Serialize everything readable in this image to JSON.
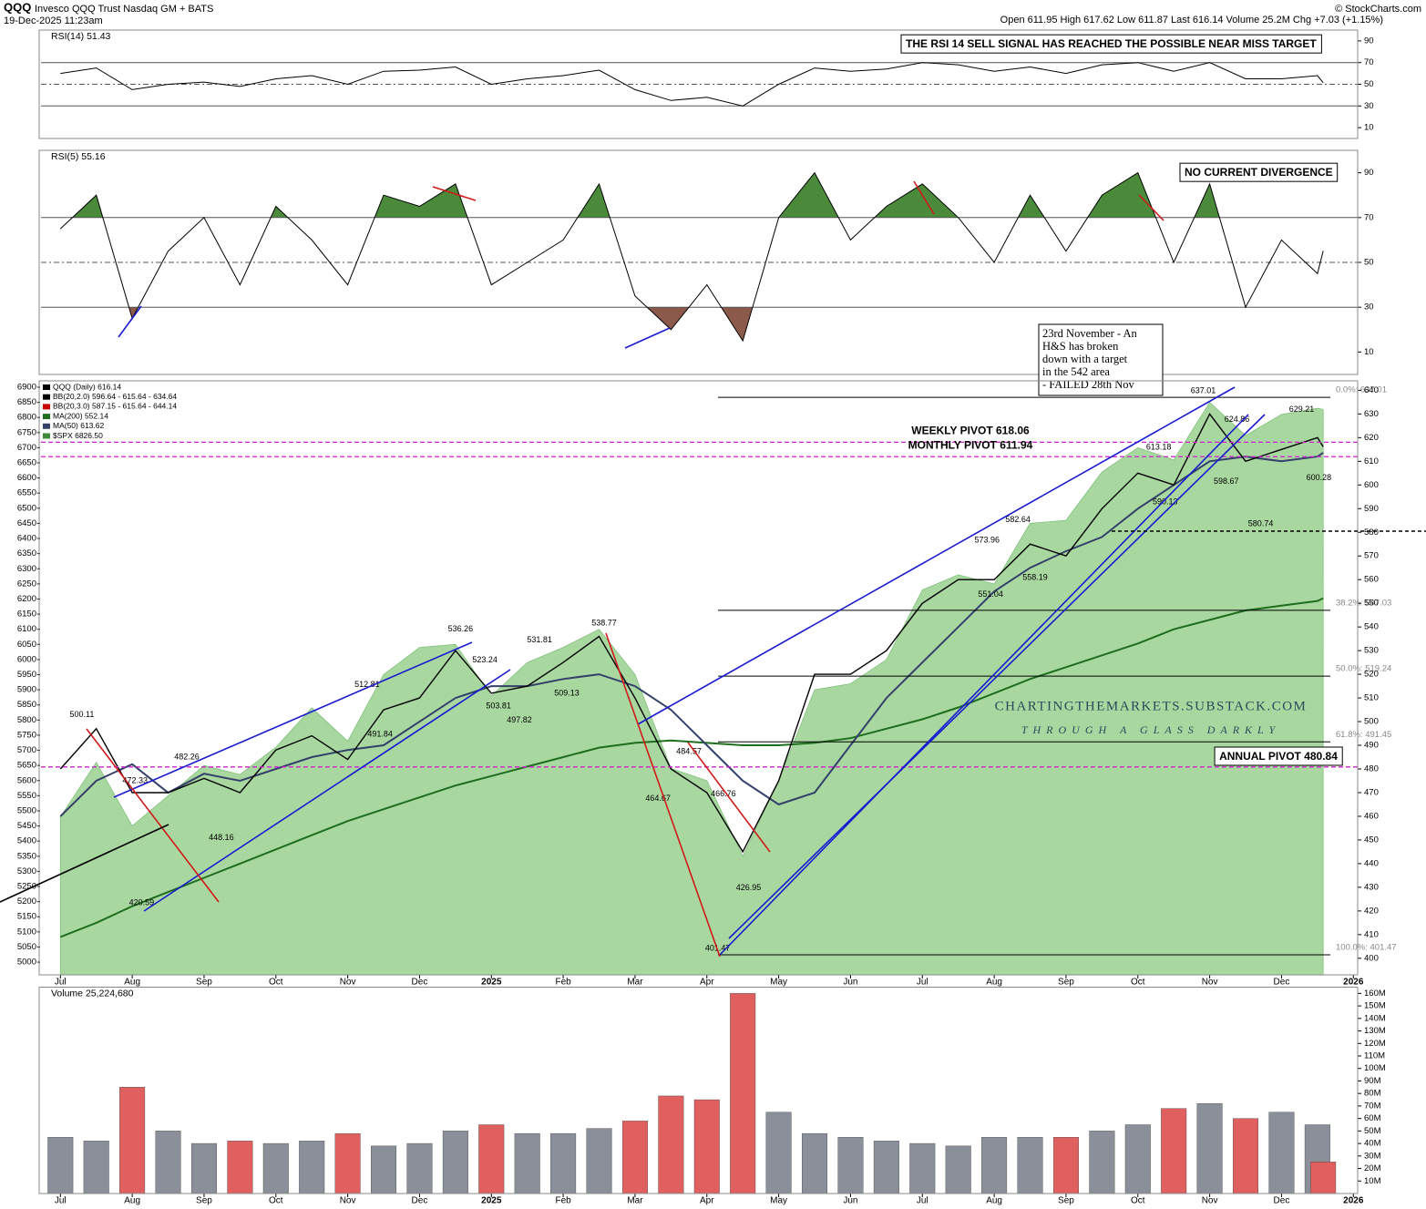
{
  "header": {
    "symbol": "QQQ",
    "name": "Invesco QQQ Trust Nasdaq GM + BATS",
    "date": "19-Dec-2025 11:23am",
    "quote": "Open 611.95 High 617.62 Low 611.87 Last 616.14 Volume 25.2M Chg +7.03 (+1.15%)",
    "credit": "© StockCharts.com"
  },
  "chart_data": [
    {
      "type": "line",
      "title": "RSI(14) 51.43",
      "annotation": "THE RSI 14 SELL SIGNAL HAS REACHED THE POSSIBLE NEAR MISS TARGET",
      "x": [
        0,
        0.5,
        1,
        1.5,
        2,
        2.5,
        3,
        3.5,
        4,
        4.5,
        5,
        5.5,
        6,
        6.5,
        7,
        7.5,
        8,
        8.5,
        9,
        9.5,
        10,
        10.5,
        11,
        11.5,
        12,
        12.5,
        13,
        13.5,
        14,
        14.5,
        15,
        15.5,
        16,
        16.5,
        17,
        17.5,
        17.58
      ],
      "xlim": [
        -0.27,
        18.06
      ],
      "ylim": [
        0,
        100
      ],
      "yticks": [
        90,
        70,
        50,
        30,
        10
      ],
      "levels": [
        70,
        50,
        30
      ],
      "series": [
        {
          "color": "#000000",
          "values": [
            60,
            65,
            45,
            50,
            52,
            48,
            55,
            58,
            50,
            62,
            63,
            66,
            50,
            55,
            58,
            63,
            45,
            35,
            38,
            30,
            50,
            65,
            62,
            64,
            70,
            68,
            62,
            66,
            60,
            68,
            70,
            62,
            70,
            55,
            55,
            58,
            51.43
          ]
        }
      ],
      "fill_colors": [
        "#4a8a3a",
        "#8b5a4a"
      ]
    },
    {
      "type": "line",
      "title": "RSI(5) 55.16",
      "annotation": "NO CURRENT DIVERGENCE",
      "x": [
        0,
        0.5,
        1,
        1.5,
        2,
        2.5,
        3,
        3.5,
        4,
        4.5,
        5,
        5.5,
        6,
        6.5,
        7,
        7.5,
        8,
        8.5,
        9,
        9.5,
        10,
        10.5,
        11,
        11.5,
        12,
        12.5,
        13,
        13.5,
        14,
        14.5,
        15,
        15.5,
        16,
        16.5,
        17,
        17.5,
        17.58
      ],
      "xlim": [
        -0.27,
        18.06
      ],
      "ylim": [
        0,
        100
      ],
      "yticks": [
        90,
        70,
        50,
        30,
        10
      ],
      "levels": [
        70,
        50,
        30
      ],
      "series": [
        {
          "color": "#000000",
          "values": [
            65,
            80,
            25,
            55,
            70,
            40,
            75,
            60,
            40,
            80,
            75,
            85,
            40,
            50,
            60,
            85,
            35,
            20,
            40,
            15,
            70,
            90,
            60,
            75,
            85,
            70,
            50,
            80,
            55,
            80,
            90,
            50,
            85,
            30,
            60,
            45,
            55.16
          ]
        }
      ],
      "fill_colors": [
        "#4a8a3a",
        "#8b5a4a"
      ]
    },
    {
      "type": "price",
      "x": [
        0,
        0.5,
        1,
        1.5,
        2,
        2.5,
        3,
        3.5,
        4,
        4.5,
        5,
        5.5,
        6,
        6.5,
        7,
        7.5,
        8,
        8.5,
        9,
        9.5,
        10,
        10.5,
        11,
        11.5,
        12,
        12.5,
        13,
        13.5,
        14,
        14.5,
        15,
        15.5,
        16,
        16.5,
        17,
        17.5,
        17.58
      ],
      "xlim": [
        -0.27,
        18.06
      ],
      "xticks": [
        {
          "value": 0,
          "label": "Jul"
        },
        {
          "value": 1,
          "label": "Aug"
        },
        {
          "value": 2,
          "label": "Sep"
        },
        {
          "value": 3,
          "label": "Oct"
        },
        {
          "value": 4,
          "label": "Nov"
        },
        {
          "value": 5,
          "label": "Dec"
        },
        {
          "value": 6,
          "label": "2025"
        },
        {
          "value": 7,
          "label": "Feb"
        },
        {
          "value": 8,
          "label": "Mar"
        },
        {
          "value": 9,
          "label": "Apr"
        },
        {
          "value": 10,
          "label": "May"
        },
        {
          "value": 11,
          "label": "Jun"
        },
        {
          "value": 12,
          "label": "Jul"
        },
        {
          "value": 13,
          "label": "Aug"
        },
        {
          "value": 14,
          "label": "Sep"
        },
        {
          "value": 15,
          "label": "Oct"
        },
        {
          "value": 16,
          "label": "Nov"
        },
        {
          "value": 17,
          "label": "Dec"
        },
        {
          "value": 18,
          "label": "2026"
        }
      ],
      "ylim": [
        393,
        644
      ],
      "yticks": [
        400,
        410,
        420,
        430,
        440,
        450,
        460,
        470,
        480,
        490,
        500,
        510,
        520,
        530,
        540,
        550,
        560,
        570,
        580,
        590,
        600,
        610,
        620,
        630,
        640
      ],
      "y2lim": [
        4958,
        6921
      ],
      "y2ticks": [
        5000,
        5050,
        5100,
        5150,
        5200,
        5250,
        5300,
        5350,
        5400,
        5450,
        5500,
        5550,
        5600,
        5650,
        5700,
        5750,
        5800,
        5850,
        5900,
        5950,
        6000,
        6050,
        6100,
        6150,
        6200,
        6250,
        6300,
        6350,
        6400,
        6450,
        6500,
        6550,
        6600,
        6650,
        6700,
        6750,
        6800,
        6850,
        6900
      ],
      "series": [
        {
          "name": "$SPX 6826.50",
          "color": "#a8d8a0",
          "axis": "y2",
          "values": [
            5480,
            5660,
            5450,
            5550,
            5650,
            5620,
            5710,
            5840,
            5730,
            5950,
            6040,
            6050,
            5880,
            5990,
            6040,
            6100,
            5950,
            5640,
            5600,
            5350,
            5600,
            5900,
            5920,
            6000,
            6230,
            6280,
            6250,
            6450,
            6460,
            6620,
            6700,
            6660,
            6850,
            6740,
            6810,
            6830,
            6826.5
          ]
        },
        {
          "name": "MA(200) 552.14",
          "color": "#1e6e1e",
          "values": [
            409,
            415,
            422,
            428,
            434,
            440,
            446,
            452,
            458,
            463,
            468,
            473,
            477,
            481,
            485,
            489,
            491,
            492,
            491,
            490,
            490,
            491,
            493,
            497,
            501,
            506,
            512,
            518,
            523,
            528,
            533,
            539,
            543,
            547,
            549,
            551,
            552.14
          ]
        },
        {
          "name": "MA(50) 613.62",
          "color": "#34406a",
          "values": [
            460,
            475,
            482,
            470,
            478,
            475,
            480,
            485,
            488,
            490,
            500,
            510,
            515,
            515,
            518,
            520,
            515,
            505,
            490,
            475,
            465,
            470,
            490,
            510,
            525,
            540,
            555,
            565,
            572,
            578,
            590,
            600,
            610,
            612,
            610,
            612,
            613.62
          ]
        },
        {
          "name": "QQQ (Daily) 616.14",
          "color": "#000000",
          "values": [
            480,
            497,
            470,
            470,
            476,
            470,
            488,
            494,
            484,
            505,
            510,
            530,
            512,
            515,
            525,
            536,
            510,
            480,
            470,
            445,
            475,
            520,
            520,
            530,
            550,
            560,
            560,
            575,
            570,
            590,
            605,
            600,
            630,
            610,
            615,
            620,
            616.14
          ]
        }
      ],
      "bands": [
        {
          "name": "BB(20,2.0) 596.64 - 615.64 - 634.64",
          "color": "#000000"
        },
        {
          "name": "BB(20,3.0) 587.15 - 615.64 - 644.14",
          "color": "#cc0000"
        }
      ],
      "pivots": [
        {
          "label": "WEEKLY PIVOT 618.06",
          "value": 618.06
        },
        {
          "label": "MONTHLY PIVOT 611.94",
          "value": 611.94
        },
        {
          "label": "ANNUAL PIVOT 480.84",
          "value": 480.84
        }
      ],
      "fibs": [
        {
          "label": "0.0%: 637.01",
          "value": 637.01
        },
        {
          "label": "38.2%: 547.03",
          "value": 547.03
        },
        {
          "label": "50.0%: 519.24",
          "value": 519.24
        },
        {
          "label": "61.8%: 491.45",
          "value": 491.45
        },
        {
          "label": "100.0%: 401.47",
          "value": 401.47
        }
      ],
      "price_labels": [
        {
          "x": 0.3,
          "value": 500.11
        },
        {
          "x": 1.76,
          "value": 482.26
        },
        {
          "x": 1.04,
          "value": 472.33
        },
        {
          "x": 1.13,
          "value": 420.59
        },
        {
          "x": 2.24,
          "value": 448.16
        },
        {
          "x": 4.45,
          "value": 491.84
        },
        {
          "x": 4.27,
          "value": 512.81
        },
        {
          "x": 5.57,
          "value": 536.26
        },
        {
          "x": 5.91,
          "value": 523.24
        },
        {
          "x": 6.1,
          "value": 503.81
        },
        {
          "x": 6.39,
          "value": 497.82
        },
        {
          "x": 6.67,
          "value": 531.81
        },
        {
          "x": 7.05,
          "value": 509.13
        },
        {
          "x": 7.57,
          "value": 538.77
        },
        {
          "x": 8.75,
          "value": 484.57
        },
        {
          "x": 9.23,
          "value": 466.76
        },
        {
          "x": 8.32,
          "value": 464.67
        },
        {
          "x": 9.58,
          "value": 426.95
        },
        {
          "x": 9.15,
          "value": 401.47
        },
        {
          "x": 12.95,
          "value": 551.04
        },
        {
          "x": 13.57,
          "value": 558.19
        },
        {
          "x": 12.9,
          "value": 573.96
        },
        {
          "x": 13.33,
          "value": 582.64
        },
        {
          "x": 15.38,
          "value": 590.13
        },
        {
          "x": 15.29,
          "value": 613.18
        },
        {
          "x": 15.91,
          "value": 637.01
        },
        {
          "x": 16.38,
          "value": 624.86
        },
        {
          "x": 16.23,
          "value": 598.67
        },
        {
          "x": 17.28,
          "value": 629.21
        },
        {
          "x": 16.71,
          "value": 580.74
        },
        {
          "x": 17.52,
          "value": 600.28
        }
      ],
      "note": [
        "23rd November - An",
        "H&S has broken",
        "down with a target",
        "in the 542 area",
        "- FAILED 28th Nov"
      ],
      "watermark": [
        "CHARTINGTHEMARKETS.SUBSTACK.COM",
        "THROUGH A GLASS DARKLY"
      ]
    },
    {
      "type": "bar",
      "title": "Volume 25,224,680",
      "x": [
        0,
        0.5,
        1,
        1.5,
        2,
        2.5,
        3,
        3.5,
        4,
        4.5,
        5,
        5.5,
        6,
        6.5,
        7,
        7.5,
        8,
        8.5,
        9,
        9.5,
        10,
        10.5,
        11,
        11.5,
        12,
        12.5,
        13,
        13.5,
        14,
        14.5,
        15,
        15.5,
        16,
        16.5,
        17,
        17.5,
        17.58
      ],
      "xlim": [
        -0.27,
        18.06
      ],
      "xticks": [
        {
          "value": 0,
          "label": "Jul"
        },
        {
          "value": 1,
          "label": "Aug"
        },
        {
          "value": 2,
          "label": "Sep"
        },
        {
          "value": 3,
          "label": "Oct"
        },
        {
          "value": 4,
          "label": "Nov"
        },
        {
          "value": 5,
          "label": "Dec"
        },
        {
          "value": 6,
          "label": "2025"
        },
        {
          "value": 7,
          "label": "Feb"
        },
        {
          "value": 8,
          "label": "Mar"
        },
        {
          "value": 9,
          "label": "Apr"
        },
        {
          "value": 10,
          "label": "May"
        },
        {
          "value": 11,
          "label": "Jun"
        },
        {
          "value": 12,
          "label": "Jul"
        },
        {
          "value": 13,
          "label": "Aug"
        },
        {
          "value": 14,
          "label": "Sep"
        },
        {
          "value": 15,
          "label": "Oct"
        },
        {
          "value": 16,
          "label": "Nov"
        },
        {
          "value": 17,
          "label": "Dec"
        },
        {
          "value": 18,
          "label": "2026"
        }
      ],
      "ylim": [
        0,
        165
      ],
      "yticks": [
        {
          "value": 10,
          "label": "10M"
        },
        {
          "value": 20,
          "label": "20M"
        },
        {
          "value": 30,
          "label": "30M"
        },
        {
          "value": 40,
          "label": "40M"
        },
        {
          "value": 50,
          "label": "50M"
        },
        {
          "value": 60,
          "label": "60M"
        },
        {
          "value": 70,
          "label": "70M"
        },
        {
          "value": 80,
          "label": "80M"
        },
        {
          "value": 90,
          "label": "90M"
        },
        {
          "value": 100,
          "label": "100M"
        },
        {
          "value": 110,
          "label": "110M"
        },
        {
          "value": 120,
          "label": "120M"
        },
        {
          "value": 130,
          "label": "130M"
        },
        {
          "value": 140,
          "label": "140M"
        },
        {
          "value": 150,
          "label": "150M"
        },
        {
          "value": 160,
          "label": "160M"
        }
      ],
      "up_color": "#8a8f99",
      "down_color": "#e06060",
      "series": [
        {
          "values": [
            45,
            42,
            85,
            50,
            40,
            42,
            40,
            42,
            48,
            38,
            40,
            50,
            55,
            48,
            48,
            52,
            58,
            78,
            75,
            160,
            65,
            48,
            45,
            42,
            40,
            38,
            45,
            45,
            45,
            50,
            55,
            68,
            72,
            60,
            65,
            55,
            25.22468
          ]
        }
      ]
    }
  ]
}
